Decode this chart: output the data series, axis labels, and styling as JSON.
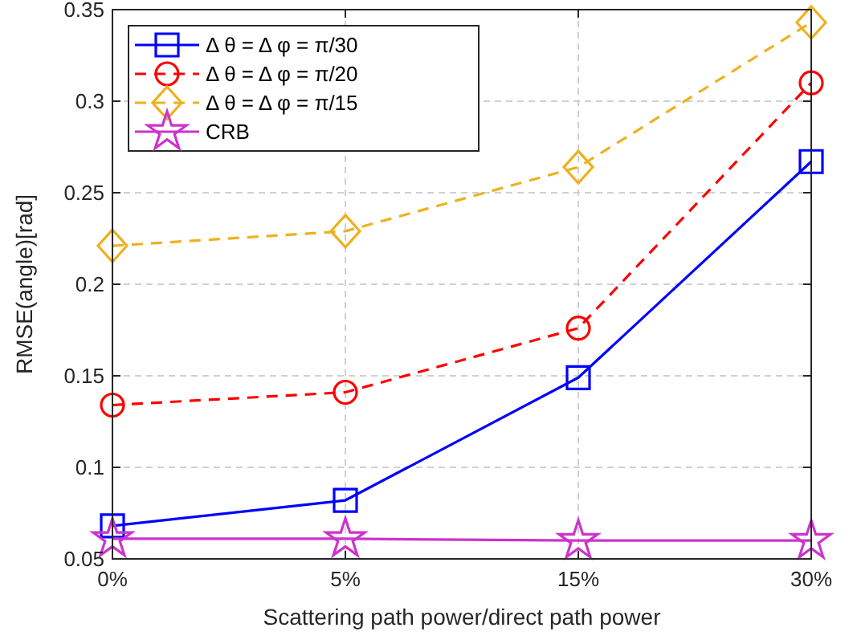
{
  "chart_data": {
    "type": "line",
    "xlabel": "Scattering path power/direct path power",
    "ylabel": "RMSE(angle)[rad]",
    "categories": [
      "0%",
      "5%",
      "15%",
      "30%"
    ],
    "ylim": [
      0.05,
      0.35
    ],
    "yticks": [
      0.05,
      0.1,
      0.15,
      0.2,
      0.25,
      0.3,
      0.35
    ],
    "grid": true,
    "legend": "top left",
    "series": [
      {
        "name": "Δ θ = Δ φ = π/30",
        "color": "#0000ff",
        "values": [
          0.068,
          0.082,
          0.149,
          0.267
        ],
        "marker": "square",
        "line_style": "solid"
      },
      {
        "name": "Δ θ = Δ φ = π/20",
        "color": "#ff0000",
        "values": [
          0.134,
          0.141,
          0.176,
          0.31
        ],
        "marker": "circle",
        "line_style": "dashed"
      },
      {
        "name": "Δ θ = Δ φ = π/15",
        "color": "#edb120",
        "values": [
          0.221,
          0.229,
          0.264,
          0.343
        ],
        "marker": "diamond",
        "line_style": "dashed"
      },
      {
        "name": "CRB",
        "color": "#cc33cc",
        "values": [
          0.061,
          0.061,
          0.06,
          0.06
        ],
        "marker": "star",
        "line_style": "solid"
      }
    ]
  }
}
